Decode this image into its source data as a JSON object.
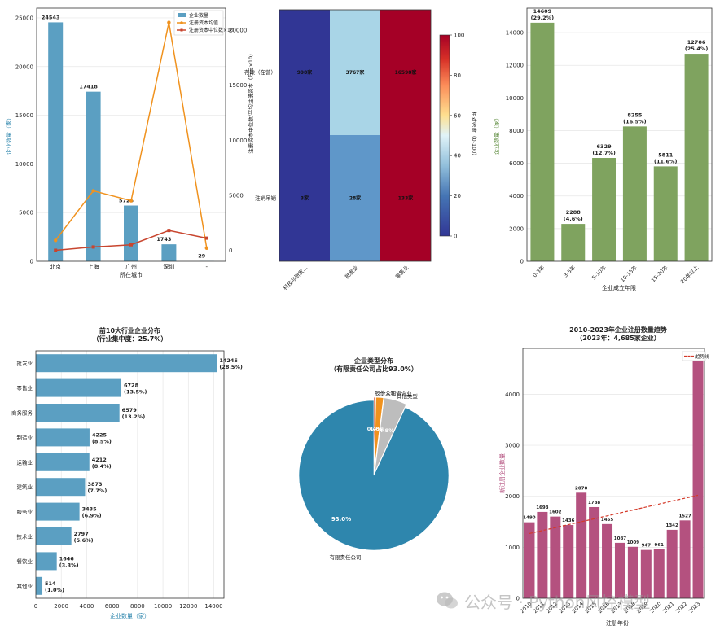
{
  "chart_data": [
    {
      "type": "bar",
      "categories": [
        "北京",
        "上海",
        "广州",
        "深圳",
        "-"
      ],
      "values": [
        24543,
        17418,
        5725,
        1743,
        29
      ],
      "ylim_left": [
        0,
        26000
      ],
      "left_ticks": [
        0,
        5000,
        10000,
        15000,
        20000,
        25000
      ],
      "right_ticks": [
        0,
        5000,
        10000,
        15000,
        20000
      ],
      "ylim_right": [
        -1000,
        22000
      ],
      "xlabel": "所在城市",
      "ylabel": "企业数量（家）",
      "ylabel_right": "注册资本中位数/平均注册资本（万元×10）",
      "legend": [
        "企业数量",
        "注册资本均值",
        "注册资本中位数×10"
      ],
      "line_series": [
        {
          "name": "注册资本均值",
          "values": [
            900,
            5400,
            4500,
            20700,
            200
          ],
          "color": "#f0921e"
        },
        {
          "name": "注册资本中位数×10",
          "values": [
            0,
            300,
            500,
            1800,
            1100
          ],
          "color": "#c8452e"
        }
      ],
      "bar_labels": [
        "24543",
        "17418",
        "5725",
        "1743",
        "29"
      ],
      "grid": true,
      "legend_position": "top-right"
    },
    {
      "type": "heatmap",
      "columns": [
        "科技与研发…",
        "批发业",
        "零售业"
      ],
      "rows": [
        "存续（在营）",
        "注销吊销"
      ],
      "cell_labels": [
        [
          "998家",
          "3767家",
          "16598家"
        ],
        [
          "3家",
          "28家",
          "133家"
        ]
      ],
      "values": [
        [
          0,
          30,
          100
        ],
        [
          0,
          25,
          100
        ]
      ],
      "colorbar_label": "相对密度（0-100）",
      "colorbar_ticks": [
        0,
        20,
        40,
        60,
        80,
        100
      ]
    },
    {
      "type": "bar",
      "categories": [
        "0-3年",
        "3-5年",
        "5-10年",
        "10-15年",
        "15-20年",
        "20年以上"
      ],
      "values": [
        14609,
        2288,
        6329,
        8255,
        5811,
        12706
      ],
      "labels": [
        "14609\n(29.2%)",
        "2288\n(4.6%)",
        "6329\n(12.7%)",
        "8255\n(16.5%)",
        "5811\n(11.6%)",
        "12706\n(25.4%)"
      ],
      "ylim": [
        0,
        15500
      ],
      "ticks": [
        0,
        2000,
        4000,
        6000,
        8000,
        10000,
        12000,
        14000
      ],
      "xlabel": "企业成立年限",
      "ylabel": "企业数量（家）",
      "color": "#7fa35f",
      "grid": true
    },
    {
      "type": "bar",
      "orientation": "horizontal",
      "title": "前10大行业企业分布\n（行业集中度：25.7%）",
      "categories": [
        "批发业",
        "零售业",
        "商务服务",
        "制造业",
        "运输业",
        "建筑业",
        "服务业",
        "技术业",
        "餐饮业",
        "其他业"
      ],
      "values": [
        14245,
        6728,
        6579,
        4225,
        4212,
        3873,
        3435,
        2797,
        1646,
        514
      ],
      "labels": [
        "14245\n(28.5%)",
        "6728\n(13.5%)",
        "6579\n(13.2%)",
        "4225\n(8.5%)",
        "4212\n(8.4%)",
        "3873\n(7.7%)",
        "3435\n(6.9%)",
        "2797\n(5.6%)",
        "1646\n(3.3%)",
        "514\n(1.0%)"
      ],
      "xlim": [
        0,
        14800
      ],
      "ticks": [
        0,
        2000,
        4000,
        6000,
        8000,
        10000,
        12000,
        14000
      ],
      "xlabel": "企业数量（家）",
      "color": "#5b9fc2",
      "grid": true
    },
    {
      "type": "pie",
      "title": "企业类型分布\n（有限责任公司占比93.0%）",
      "slices": [
        {
          "label": "有限责任公司",
          "value": 93.0,
          "pct": "93.0%",
          "color": "#2e86ad"
        },
        {
          "label": "股份公司",
          "value": 0.4,
          "pct": "0.4%",
          "color": "#c73a1c"
        },
        {
          "label": "个人独资企业",
          "value": 1.6,
          "pct": "1.6%",
          "color": "#f0921e"
        },
        {
          "label": "其他类型",
          "value": 4.9,
          "pct": "4.9%",
          "color": "#bdbdbd"
        }
      ]
    },
    {
      "type": "bar",
      "title": "2010-2023年企业注册数量趋势\n（2023年：4,685家企业）",
      "categories": [
        "2010",
        "2011",
        "2012",
        "2013",
        "2014",
        "2015",
        "2016",
        "2017",
        "2018",
        "2019",
        "2020",
        "2021",
        "2022",
        "2023"
      ],
      "values": [
        1490,
        1693,
        1602,
        1436,
        2070,
        1788,
        1455,
        1087,
        1009,
        947,
        961,
        1342,
        1527,
        4685
      ],
      "bar_labels": [
        "1490",
        "1693",
        "1602",
        "1436",
        "2070",
        "1788",
        "1455",
        "1087",
        "1009",
        "947",
        "961",
        "1342",
        "1527",
        ""
      ],
      "trend": {
        "name": "趋势线",
        "start": 1270,
        "end": 2020
      },
      "ylim": [
        0,
        4900
      ],
      "ticks": [
        0,
        1000,
        2000,
        3000,
        4000
      ],
      "xlabel": "注册年份",
      "ylabel": "新注册企业数量",
      "color": "#b4517f",
      "grid": true,
      "legend_position": "top-right"
    }
  ],
  "watermark": {
    "text": "公众号 · Python风控模型"
  }
}
